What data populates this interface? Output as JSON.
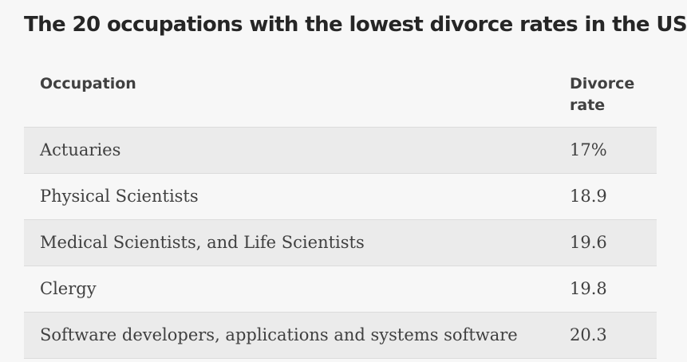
{
  "title": "The 20 occupations with the lowest divorce rates in the US",
  "chart_data": {
    "type": "table",
    "title": "The 20 occupations with the lowest divorce rates in the US",
    "columns": [
      "Occupation",
      "Divorce rate"
    ],
    "rows": [
      {
        "occupation": "Actuaries",
        "rate": "17%"
      },
      {
        "occupation": "Physical Scientists",
        "rate": "18.9"
      },
      {
        "occupation": "Medical Scientists, and Life Scientists",
        "rate": "19.6"
      },
      {
        "occupation": "Clergy",
        "rate": "19.8"
      },
      {
        "occupation": "Software developers, applications and systems software",
        "rate": "20.3"
      }
    ],
    "values": [
      17,
      18.9,
      19.6,
      19.8,
      20.3
    ]
  },
  "colors": {
    "background": "#f7f7f7",
    "row_shade": "#ebebeb",
    "divider": "#dcdcdc",
    "text": "#404040"
  }
}
